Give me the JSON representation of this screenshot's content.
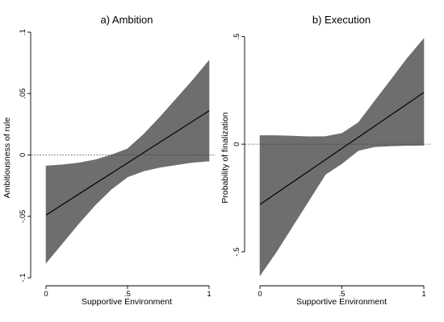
{
  "chart_data": [
    {
      "type": "line",
      "title": "a) Ambition",
      "xlabel": "Supportive Environment",
      "ylabel": "Ambitiousness of rule",
      "xlim": [
        0,
        1
      ],
      "ylim": [
        -0.1,
        0.1
      ],
      "xticks": [
        0,
        0.5,
        1
      ],
      "xtick_labels": [
        "0",
        ".5",
        "1"
      ],
      "yticks": [
        -0.1,
        -0.05,
        0,
        0.05,
        0.1
      ],
      "ytick_labels": [
        "-.1",
        "-.05",
        "0",
        ".05",
        ".1"
      ],
      "reference_line_y": 0,
      "series": [
        {
          "x": [
            0,
            1
          ],
          "values": [
            -0.049,
            0.036
          ]
        }
      ],
      "band": {
        "x": [
          0,
          0.1,
          0.2,
          0.3,
          0.4,
          0.5,
          0.6,
          0.7,
          0.8,
          0.9,
          1.0
        ],
        "upper": [
          -0.009,
          -0.008,
          -0.0065,
          -0.004,
          0.0,
          0.005,
          0.017,
          0.031,
          0.046,
          0.061,
          0.077
        ],
        "lower": [
          -0.088,
          -0.072,
          -0.056,
          -0.041,
          -0.028,
          -0.018,
          -0.013,
          -0.01,
          -0.008,
          -0.006,
          -0.005
        ]
      }
    },
    {
      "type": "line",
      "title": "b) Execution",
      "xlabel": "Supportive Environment",
      "ylabel": "Probability of finalization",
      "xlim": [
        0,
        1
      ],
      "ylim": [
        -0.62,
        0.52
      ],
      "xticks": [
        0,
        0.5,
        1
      ],
      "xtick_labels": [
        "0",
        ".5",
        "1"
      ],
      "yticks": [
        -0.5,
        0,
        0.5
      ],
      "ytick_labels": [
        "-.5",
        "0",
        ".5"
      ],
      "reference_line_y": 0,
      "series": [
        {
          "x": [
            0,
            1
          ],
          "values": [
            -0.28,
            0.24
          ]
        }
      ],
      "band": {
        "x": [
          0,
          0.1,
          0.2,
          0.3,
          0.4,
          0.5,
          0.6,
          0.7,
          0.8,
          0.9,
          1.0
        ],
        "upper": [
          0.04,
          0.04,
          0.038,
          0.035,
          0.036,
          0.05,
          0.1,
          0.2,
          0.3,
          0.4,
          0.49
        ],
        "lower": [
          -0.61,
          -0.5,
          -0.38,
          -0.26,
          -0.14,
          -0.09,
          -0.03,
          -0.012,
          -0.008,
          -0.006,
          -0.005
        ]
      }
    }
  ]
}
